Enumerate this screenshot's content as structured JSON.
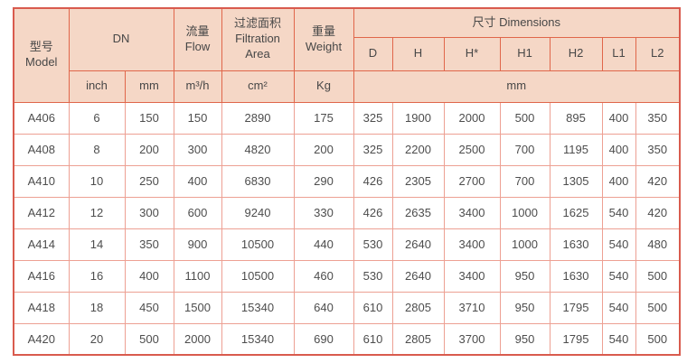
{
  "colors": {
    "header-fill": "#f5d7c6",
    "border-outer": "#d95b4e",
    "border-header": "#e0664a",
    "border-data": "#eda093",
    "text-color": "#4d4d4d"
  },
  "table": {
    "header": {
      "model": {
        "zh": "型号",
        "en": "Model"
      },
      "dn": "DN",
      "flow": {
        "zh": "流量",
        "en": "Flow"
      },
      "filtration": {
        "zh": "过滤面积",
        "en": "Filtration Area"
      },
      "weight": {
        "zh": "重量",
        "en": "Weight"
      },
      "dimensions": "尺寸 Dimensions",
      "dim_cols": [
        "D",
        "H",
        "H*",
        "H1",
        "H2",
        "L1",
        "L2"
      ],
      "units": {
        "inch": "inch",
        "mm": "mm",
        "flow": "m³/h",
        "area": "cm²",
        "weight": "Kg",
        "dims": "mm"
      }
    },
    "rows": [
      [
        "A406",
        "6",
        "150",
        "150",
        "2890",
        "175",
        "325",
        "1900",
        "2000",
        "500",
        "895",
        "400",
        "350"
      ],
      [
        "A408",
        "8",
        "200",
        "300",
        "4820",
        "200",
        "325",
        "2200",
        "2500",
        "700",
        "1195",
        "400",
        "350"
      ],
      [
        "A410",
        "10",
        "250",
        "400",
        "6830",
        "290",
        "426",
        "2305",
        "2700",
        "700",
        "1305",
        "400",
        "420"
      ],
      [
        "A412",
        "12",
        "300",
        "600",
        "9240",
        "330",
        "426",
        "2635",
        "3400",
        "1000",
        "1625",
        "540",
        "420"
      ],
      [
        "A414",
        "14",
        "350",
        "900",
        "10500",
        "440",
        "530",
        "2640",
        "3400",
        "1000",
        "1630",
        "540",
        "480"
      ],
      [
        "A416",
        "16",
        "400",
        "1100",
        "10500",
        "460",
        "530",
        "2640",
        "3400",
        "950",
        "1630",
        "540",
        "500"
      ],
      [
        "A418",
        "18",
        "450",
        "1500",
        "15340",
        "640",
        "610",
        "2805",
        "3710",
        "950",
        "1795",
        "540",
        "500"
      ],
      [
        "A420",
        "20",
        "500",
        "2000",
        "15340",
        "690",
        "610",
        "2805",
        "3700",
        "950",
        "1795",
        "540",
        "500"
      ]
    ]
  }
}
